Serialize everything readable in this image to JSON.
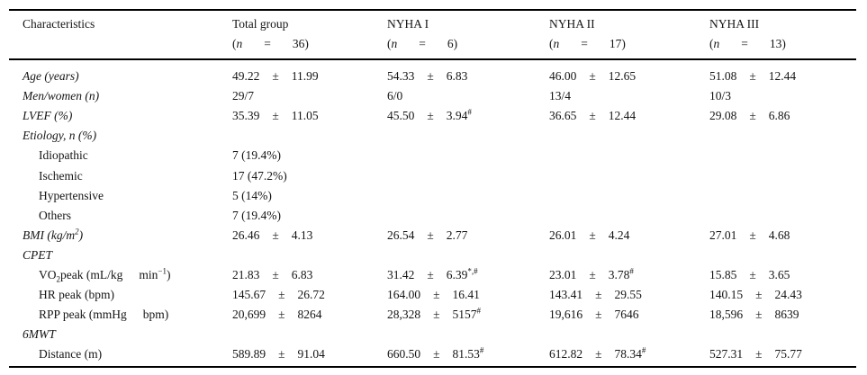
{
  "table": {
    "header": {
      "characteristics_label": "Characteristics",
      "n_open": "(",
      "n_symbol": "n",
      "n_equals": "=",
      "columns": [
        {
          "title": "Total group",
          "n_close": "36)"
        },
        {
          "title": "NYHA I",
          "n_close": "6)"
        },
        {
          "title": "NYHA II",
          "n_close": "17)"
        },
        {
          "title": "NYHA III",
          "n_close": "13)"
        }
      ]
    },
    "plus_minus": "±",
    "rows": [
      {
        "label": "Age (years)",
        "italic": true,
        "indent": 0,
        "cells": [
          {
            "v": "49.22",
            "sd": "11.99"
          },
          {
            "v": "54.33",
            "sd": "6.83"
          },
          {
            "v": "46.00",
            "sd": "12.65"
          },
          {
            "v": "51.08",
            "sd": "12.44"
          }
        ]
      },
      {
        "label": "Men/women (n)",
        "italic": true,
        "indent": 0,
        "cells": [
          {
            "v": "29/7"
          },
          {
            "v": "6/0"
          },
          {
            "v": "13/4"
          },
          {
            "v": "10/3"
          }
        ]
      },
      {
        "label": "LVEF (%)",
        "italic": true,
        "indent": 0,
        "cells": [
          {
            "v": "35.39",
            "sd": "11.05"
          },
          {
            "v": "45.50",
            "sd": "3.94",
            "sup": "#"
          },
          {
            "v": "36.65",
            "sd": "12.44"
          },
          {
            "v": "29.08",
            "sd": "6.86"
          }
        ]
      },
      {
        "label": "Etiology, n (%)",
        "italic": true,
        "indent": 0,
        "cells": []
      },
      {
        "label": "Idiopathic",
        "italic": false,
        "indent": 1,
        "cells": [
          {
            "v": "7 (19.4%)"
          }
        ]
      },
      {
        "label": "Ischemic",
        "italic": false,
        "indent": 1,
        "cells": [
          {
            "v": "17 (47.2%)"
          }
        ]
      },
      {
        "label": "Hypertensive",
        "italic": false,
        "indent": 1,
        "cells": [
          {
            "v": "5 (14%)"
          }
        ]
      },
      {
        "label": "Others",
        "italic": false,
        "indent": 1,
        "cells": [
          {
            "v": "7 (19.4%)"
          }
        ]
      },
      {
        "label": "BMI (kg/m^{2})",
        "italic": true,
        "indent": 0,
        "cells": [
          {
            "v": "26.46",
            "sd": "4.13"
          },
          {
            "v": "26.54",
            "sd": "2.77"
          },
          {
            "v": "26.01",
            "sd": "4.24"
          },
          {
            "v": "27.01",
            "sd": "4.68"
          }
        ]
      },
      {
        "label": "CPET",
        "italic": true,
        "indent": 0,
        "cells": []
      },
      {
        "label": "VO_{2}peak (mL/kg\tmin^{−1})",
        "italic": false,
        "indent": 1,
        "cells": [
          {
            "v": "21.83",
            "sd": "6.83"
          },
          {
            "v": "31.42",
            "sd": "6.39",
            "sup": "*,#"
          },
          {
            "v": "23.01",
            "sd": "3.78",
            "sup": "#"
          },
          {
            "v": "15.85",
            "sd": "3.65"
          }
        ]
      },
      {
        "label": "HR peak (bpm)",
        "italic": false,
        "indent": 1,
        "cells": [
          {
            "v": "145.67",
            "sd": "26.72"
          },
          {
            "v": "164.00",
            "sd": "16.41"
          },
          {
            "v": "143.41",
            "sd": "29.55"
          },
          {
            "v": "140.15",
            "sd": "24.43"
          }
        ]
      },
      {
        "label": "RPP peak (mmHg\tbpm)",
        "italic": false,
        "indent": 1,
        "cells": [
          {
            "v": "20,699",
            "sd": "8264"
          },
          {
            "v": "28,328",
            "sd": "5157",
            "sup": "#"
          },
          {
            "v": "19,616",
            "sd": "7646"
          },
          {
            "v": "18,596",
            "sd": "8639"
          }
        ]
      },
      {
        "label": "6MWT",
        "italic": true,
        "indent": 0,
        "cells": []
      },
      {
        "label": "Distance (m)",
        "italic": false,
        "indent": 1,
        "cells": [
          {
            "v": "589.89",
            "sd": "91.04"
          },
          {
            "v": "660.50",
            "sd": "81.53",
            "sup": "#"
          },
          {
            "v": "612.82",
            "sd": "78.34",
            "sup": "#"
          },
          {
            "v": "527.31",
            "sd": "75.77"
          }
        ]
      }
    ]
  }
}
